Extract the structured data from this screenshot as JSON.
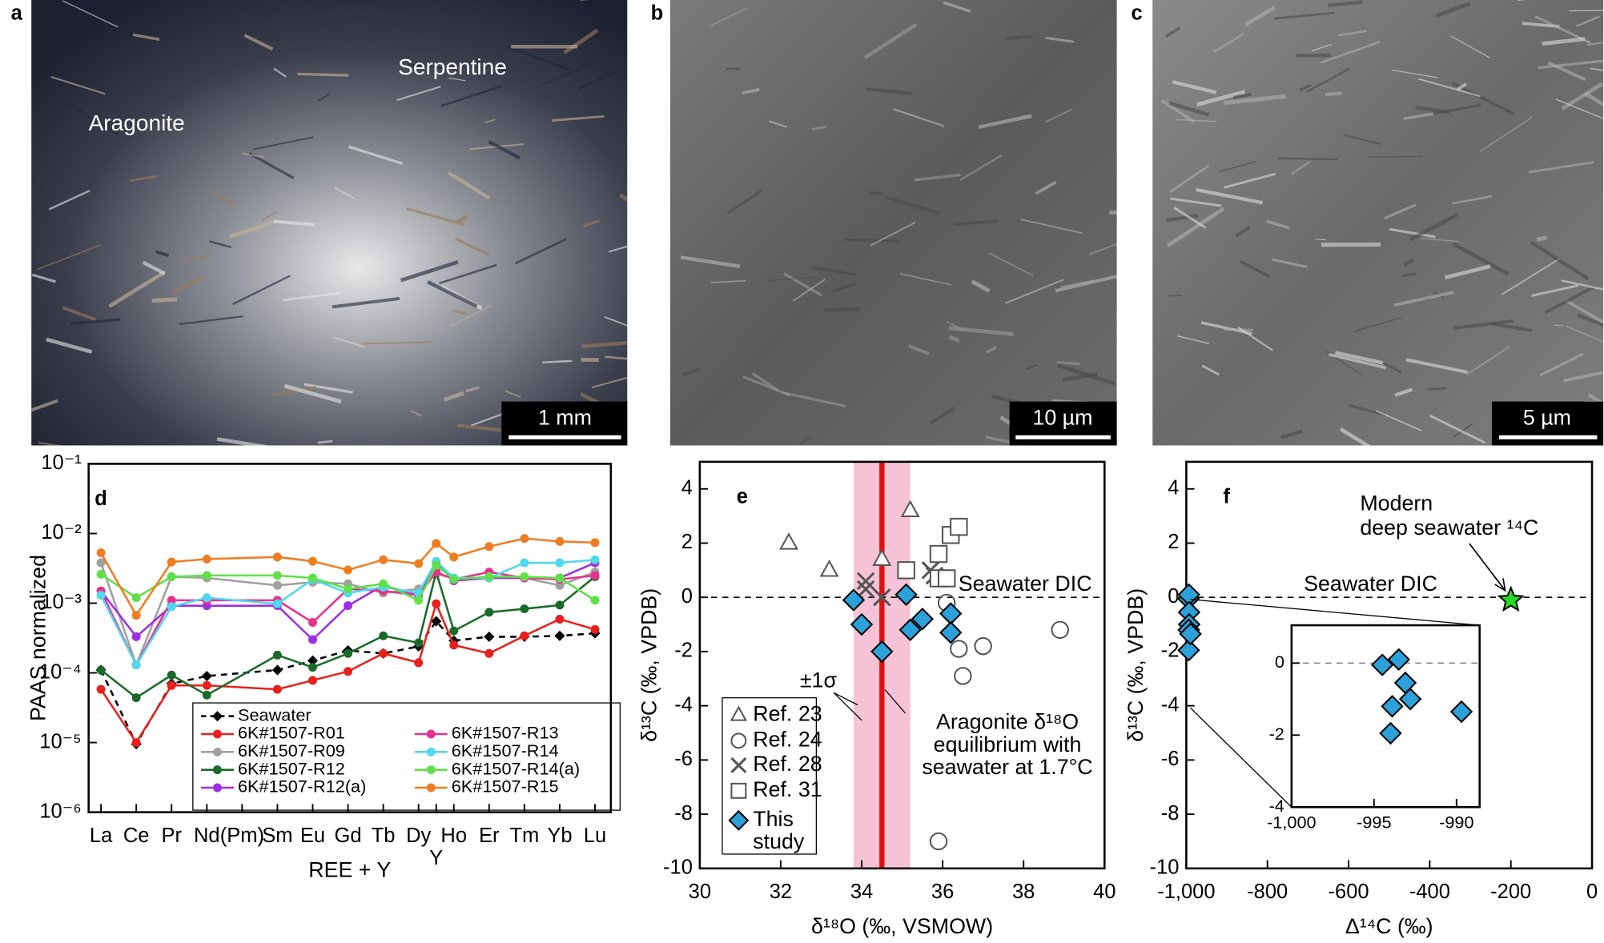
{
  "photos": [
    {
      "label": "a",
      "annotations": [
        "Aragonite",
        "Serpentine"
      ],
      "scale_bar": "1 mm"
    },
    {
      "label": "b",
      "scale_bar": "10 µm"
    },
    {
      "label": "c",
      "scale_bar": "5 µm"
    }
  ],
  "chart_data": [
    {
      "type": "line",
      "panel": "d",
      "y_label": "PAAS normalized",
      "x_label": "REE + Y",
      "log_y": true,
      "xlim": [
        0.65,
        15.45
      ],
      "xticks": [
        {
          "value": 1,
          "label": "La"
        },
        {
          "value": 2,
          "label": "Ce"
        },
        {
          "value": 3,
          "label": "Pr"
        },
        {
          "value": 4,
          "label": "Nd"
        },
        {
          "value": 5,
          "label": "(Pm)"
        },
        {
          "value": 6,
          "label": "Sm"
        },
        {
          "value": 7,
          "label": "Eu"
        },
        {
          "value": 8,
          "label": "Gd"
        },
        {
          "value": 9,
          "label": "Tb"
        },
        {
          "value": 10,
          "label": "Dy"
        },
        {
          "value": 10.5,
          "label": "Y"
        },
        {
          "value": 11,
          "label": "Ho"
        },
        {
          "value": 12,
          "label": "Er"
        },
        {
          "value": 13,
          "label": "Tm"
        },
        {
          "value": 14,
          "label": "Yb"
        },
        {
          "value": 15,
          "label": "Lu"
        }
      ],
      "ylim": [
        1e-06,
        0.1
      ],
      "yticks": [
        {
          "value": 1e-06,
          "label": "10⁻⁶"
        },
        {
          "value": 1e-05,
          "label": "10⁻⁵"
        },
        {
          "value": 0.0001,
          "label": "10⁻⁴"
        },
        {
          "value": 0.001,
          "label": "10⁻³"
        },
        {
          "value": 0.01,
          "label": "10⁻²"
        },
        {
          "value": 0.1,
          "label": "10⁻¹"
        }
      ],
      "x": [
        1,
        2,
        3,
        4,
        6,
        7,
        8,
        9,
        10,
        10.5,
        11,
        12,
        13,
        14,
        15
      ],
      "series": [
        {
          "name": "Seawater",
          "color": "#000000",
          "marker": "diamond",
          "line_style": "dashed",
          "values": [
            0.00011,
            9.5e-06,
            7e-05,
            9e-05,
            0.00011,
            0.00015,
            0.00021,
            0.00019,
            0.00024,
            0.00055,
            0.00029,
            0.00033,
            0.00033,
            0.00034,
            0.00037
          ]
        },
        {
          "name": "6K#1507-R01",
          "color": "#e8211c",
          "marker": "circle",
          "values": [
            5.8e-05,
            1e-05,
            6.6e-05,
            6.6e-05,
            5.8e-05,
            7.8e-05,
            0.000105,
            0.00019,
            0.00014,
            0.00098,
            0.00025,
            0.00019,
            0.00034,
            0.00059,
            0.00042
          ]
        },
        {
          "name": "6K#1507-R09",
          "color": "#a0a0a0",
          "marker": "circle",
          "values": [
            0.0038,
            0.00013,
            0.0024,
            0.0023,
            0.0018,
            0.002,
            0.0019,
            0.0014,
            0.0016,
            0.0026,
            0.0023,
            0.0023,
            0.0023,
            0.0018,
            0.0028
          ]
        },
        {
          "name": "6K#1507-R12",
          "color": "#1a6b2a",
          "marker": "circle",
          "values": [
            0.00011,
            4.4e-05,
            9.3e-05,
            4.8e-05,
            0.00018,
            0.00012,
            0.00019,
            0.00034,
            0.00027,
            0.0028,
            0.0004,
            0.00074,
            0.00083,
            0.00094,
            0.0024
          ]
        },
        {
          "name": "6K#1507-R12(a)",
          "color": "#9b30e0",
          "marker": "circle",
          "values": [
            0.0015,
            0.00033,
            0.00092,
            0.00092,
            0.00092,
            0.0003,
            0.00092,
            0.0018,
            0.0013,
            0.0039,
            0.0021,
            0.0023,
            0.0023,
            0.0023,
            0.0038
          ]
        },
        {
          "name": "6K#1507-R13",
          "color": "#e8308f",
          "marker": "circle",
          "values": [
            0.0015,
            0.00013,
            0.0011,
            0.0011,
            0.0011,
            0.00053,
            0.0016,
            0.0015,
            0.0013,
            0.0028,
            0.0022,
            0.0028,
            0.0023,
            0.0022,
            0.0025
          ]
        },
        {
          "name": "6K#1507-R14",
          "color": "#4fd8ee",
          "marker": "circle",
          "values": [
            0.0013,
            0.00013,
            0.00089,
            0.0012,
            0.00098,
            0.0022,
            0.0014,
            0.0017,
            0.0014,
            0.004,
            0.0023,
            0.0023,
            0.0038,
            0.0038,
            0.0042
          ]
        },
        {
          "name": "6K#1507-R14(a)",
          "color": "#5fe04a",
          "marker": "circle",
          "values": [
            0.0026,
            0.0012,
            0.0024,
            0.0025,
            0.0025,
            0.0023,
            0.0016,
            0.0019,
            0.0011,
            0.0035,
            0.0022,
            0.0024,
            0.0024,
            0.0023,
            0.0011
          ]
        },
        {
          "name": "6K#1507-R15",
          "color": "#ee7d22",
          "marker": "circle",
          "values": [
            0.0053,
            0.00067,
            0.0039,
            0.0043,
            0.0046,
            0.004,
            0.003,
            0.0042,
            0.0037,
            0.0072,
            0.0046,
            0.0065,
            0.0085,
            0.0077,
            0.0074
          ]
        }
      ]
    },
    {
      "type": "scatter",
      "panel": "e",
      "x_label": "δ¹⁸O (‰, VSMOW)",
      "y_label": "δ¹³C (‰, VPDB)",
      "xlim": [
        30,
        40
      ],
      "xticks": [
        30,
        32,
        34,
        36,
        38,
        40
      ],
      "ylim": [
        -10,
        5
      ],
      "yticks": [
        -10,
        -8,
        -6,
        -4,
        -2,
        0,
        2,
        4
      ],
      "equilibrium": {
        "value": 34.5,
        "sigma": 0.7,
        "color": "#dd1111",
        "band_color": "#f6c3d6",
        "sigma_label": "±1σ",
        "note": [
          "Aragonite δ¹⁸O",
          "equilibrium with",
          "seawater at 1.7°C"
        ]
      },
      "seawater_dic": {
        "value": 0,
        "label": "Seawater DIC"
      },
      "series": [
        {
          "name": "Ref. 23",
          "marker": "triangle",
          "color": "#555555",
          "x": [
            32.2,
            33.2,
            34.5,
            35.2
          ],
          "values": [
            2.0,
            1.0,
            1.4,
            3.2
          ]
        },
        {
          "name": "Ref. 24",
          "marker": "circle",
          "color": "#555555",
          "x": [
            35.1,
            36.1,
            36.4,
            37.0,
            36.5,
            38.9,
            35.9
          ],
          "values": [
            1.0,
            -0.2,
            -1.9,
            -1.8,
            -2.9,
            -1.2,
            -9.0
          ]
        },
        {
          "name": "Ref. 28",
          "marker": "cross",
          "color": "#555555",
          "x": [
            34.1,
            34.1,
            34.5,
            35.8,
            35.7
          ],
          "values": [
            0.6,
            0.3,
            0.0,
            0.8,
            1.0
          ]
        },
        {
          "name": "Ref. 31",
          "marker": "square",
          "color": "#555555",
          "x": [
            35.1,
            35.9,
            36.1,
            35.9,
            36.2,
            36.4
          ],
          "values": [
            1.0,
            0.7,
            0.7,
            1.6,
            2.3,
            2.6
          ]
        },
        {
          "name": "This study",
          "marker": "diamond",
          "color": "#2ca0d8",
          "x": [
            33.8,
            34.0,
            34.5,
            35.1,
            35.2,
            35.5,
            36.2,
            36.2
          ],
          "values": [
            -0.1,
            -1.0,
            -2.0,
            0.1,
            -1.2,
            -0.8,
            -0.6,
            -1.3
          ]
        }
      ]
    },
    {
      "type": "scatter",
      "panel": "f",
      "x_label": "Δ¹⁴C (‰)",
      "y_label": "δ¹³C (‰, VPDB)",
      "xlim": [
        -1000,
        0
      ],
      "xticks": [
        {
          "value": -1000,
          "label": "-1,000"
        },
        -800,
        -600,
        -400,
        -200,
        0
      ],
      "ylim": [
        -10,
        5
      ],
      "yticks": [
        -10,
        -8,
        -6,
        -4,
        -2,
        0,
        2,
        4
      ],
      "seawater_dic": {
        "value": 0,
        "label": "Seawater DIC"
      },
      "star_note": [
        "Modern",
        "deep seawater ¹⁴C"
      ],
      "series": [
        {
          "marker": "diamond",
          "color": "#2ca0d8",
          "x": [
            -994.5,
            -993.5,
            -993.1,
            -992.8,
            -993.9,
            -994.0,
            -989.7
          ],
          "values": [
            -0.05,
            0.1,
            -0.55,
            -1.0,
            -1.2,
            -1.95,
            -1.35
          ]
        },
        {
          "marker": "star",
          "color": "#22dd22",
          "x": [
            -200
          ],
          "values": [
            -0.1
          ]
        }
      ],
      "inset": {
        "xlim": [
          -1000,
          -988.6
        ],
        "xticks": [
          {
            "value": -1000,
            "label": "-1,000"
          },
          -995,
          -990
        ],
        "ylim": [
          -4,
          1.05
        ],
        "yticks": [
          -4,
          -2,
          0
        ]
      }
    }
  ]
}
